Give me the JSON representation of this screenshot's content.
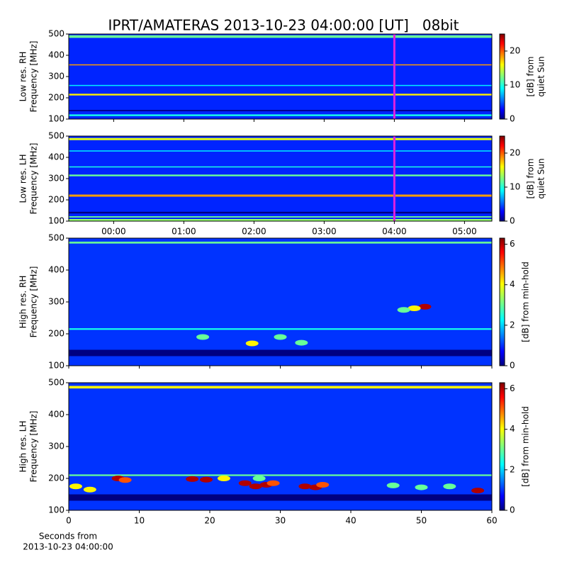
{
  "chart_data": [
    {
      "type": "heatmap",
      "title": "IPRT/AMATERAS 2013-10-23 04:00:00 [UT]   08bit",
      "ylabel": [
        "Low res. RH",
        "Frequency [MHz]"
      ],
      "xlim": [
        -0.64,
        5.39
      ],
      "xticks": [
        {
          "value": 0,
          "label": "00:00"
        },
        {
          "value": 1,
          "label": "01:00"
        },
        {
          "value": 2,
          "label": "02:00"
        },
        {
          "value": 3,
          "label": "03:00"
        },
        {
          "value": 4,
          "label": "04:00"
        },
        {
          "value": 5,
          "label": "05:00"
        }
      ],
      "xticklabels": false,
      "ylim": [
        100,
        500
      ],
      "yticks": [
        100,
        200,
        300,
        400,
        500
      ],
      "zlim": [
        0,
        25
      ],
      "zticks": [
        0,
        10,
        20
      ],
      "zlabel": [
        "[dB] from",
        "quiet Sun"
      ],
      "background": 4,
      "cursor": 4,
      "cursor_color": "#e020e0",
      "bands": [
        {
          "y": 488,
          "height": 12,
          "z": 12
        },
        {
          "y": 355,
          "height": 5,
          "z": 18
        },
        {
          "y": 258,
          "height": 5,
          "z": 9
        },
        {
          "y": 215,
          "height": 8,
          "z": 16
        },
        {
          "y": 140,
          "height": 6,
          "z": 0
        },
        {
          "y": 118,
          "height": 8,
          "z": 10
        }
      ],
      "spots": []
    },
    {
      "type": "heatmap",
      "ylabel": [
        "Low res. LH",
        "Frequency [MHz]"
      ],
      "xlim": [
        -0.64,
        5.39
      ],
      "xticks": [
        {
          "value": 0,
          "label": "00:00"
        },
        {
          "value": 1,
          "label": "01:00"
        },
        {
          "value": 2,
          "label": "02:00"
        },
        {
          "value": 3,
          "label": "03:00"
        },
        {
          "value": 4,
          "label": "04:00"
        },
        {
          "value": 5,
          "label": "05:00"
        }
      ],
      "xticklabels": true,
      "ylim": [
        100,
        500
      ],
      "yticks": [
        100,
        200,
        300,
        400,
        500
      ],
      "zlim": [
        0,
        25
      ],
      "zticks": [
        0,
        10,
        20
      ],
      "zlabel": [
        "[dB] from",
        "quiet Sun"
      ],
      "background": 4,
      "cursor": 4,
      "cursor_color": "#e020e0",
      "bands": [
        {
          "y": 486,
          "height": 10,
          "z": 15
        },
        {
          "y": 430,
          "height": 5,
          "z": 9
        },
        {
          "y": 355,
          "height": 5,
          "z": 10
        },
        {
          "y": 315,
          "height": 8,
          "z": 12
        },
        {
          "y": 220,
          "height": 10,
          "z": 18
        },
        {
          "y": 140,
          "height": 8,
          "z": 0
        },
        {
          "y": 120,
          "height": 6,
          "z": 12
        },
        {
          "y": 105,
          "height": 10,
          "z": 13
        }
      ],
      "spots": []
    },
    {
      "type": "heatmap",
      "ylabel": [
        "High res. RH",
        "Frequency [MHz]"
      ],
      "xlim": [
        0,
        60
      ],
      "xticks": [
        0,
        10,
        20,
        30,
        40,
        50,
        60
      ],
      "xticklabels": false,
      "ylim": [
        100,
        500
      ],
      "yticks": [
        100,
        200,
        300,
        400,
        500
      ],
      "zlim": [
        0,
        6.3
      ],
      "zticks": [
        0,
        2,
        4,
        6
      ],
      "zlabel": [
        "[dB] from min-hold"
      ],
      "background": 1.1,
      "bands": [
        {
          "y": 486,
          "height": 6,
          "z": 3
        },
        {
          "y": 215,
          "height": 5,
          "z": 2.5
        },
        {
          "y": 140,
          "height": 20,
          "z": 0
        }
      ],
      "spots": [
        {
          "x": 50.5,
          "y": 285,
          "z": 6
        },
        {
          "x": 49,
          "y": 280,
          "z": 4
        },
        {
          "x": 47.5,
          "y": 275,
          "z": 3
        },
        {
          "x": 19,
          "y": 190,
          "z": 3
        },
        {
          "x": 26,
          "y": 170,
          "z": 4
        },
        {
          "x": 30,
          "y": 190,
          "z": 3
        },
        {
          "x": 33,
          "y": 172,
          "z": 3
        }
      ]
    },
    {
      "type": "heatmap",
      "ylabel": [
        "High res. LH",
        "Frequency [MHz]"
      ],
      "xlim": [
        0,
        60
      ],
      "xticks": [
        0,
        10,
        20,
        30,
        40,
        50,
        60
      ],
      "xticklabels": true,
      "xlabel": [
        "Seconds from",
        "2013-10-23 04:00:00"
      ],
      "ylim": [
        100,
        500
      ],
      "yticks": [
        100,
        200,
        300,
        400,
        500
      ],
      "zlim": [
        0,
        6.3
      ],
      "zticks": [
        0,
        2,
        4,
        6
      ],
      "zlabel": [
        "[dB] from min-hold"
      ],
      "background": 1.1,
      "bands": [
        {
          "y": 486,
          "height": 8,
          "z": 4
        },
        {
          "y": 210,
          "height": 5,
          "z": 3
        },
        {
          "y": 140,
          "height": 20,
          "z": 0
        }
      ],
      "spots": [
        {
          "x": 1,
          "y": 175,
          "z": 4
        },
        {
          "x": 3,
          "y": 165,
          "z": 4
        },
        {
          "x": 7,
          "y": 200,
          "z": 6
        },
        {
          "x": 8,
          "y": 195,
          "z": 5
        },
        {
          "x": 17.5,
          "y": 198,
          "z": 6
        },
        {
          "x": 19.5,
          "y": 196,
          "z": 6
        },
        {
          "x": 22,
          "y": 200,
          "z": 4
        },
        {
          "x": 25,
          "y": 185,
          "z": 6
        },
        {
          "x": 26.5,
          "y": 175,
          "z": 6
        },
        {
          "x": 27,
          "y": 200,
          "z": 3
        },
        {
          "x": 28,
          "y": 180,
          "z": 6
        },
        {
          "x": 29,
          "y": 185,
          "z": 5
        },
        {
          "x": 33.5,
          "y": 175,
          "z": 6
        },
        {
          "x": 35,
          "y": 172,
          "z": 6
        },
        {
          "x": 36,
          "y": 180,
          "z": 5
        },
        {
          "x": 46,
          "y": 178,
          "z": 3
        },
        {
          "x": 50,
          "y": 172,
          "z": 3
        },
        {
          "x": 54,
          "y": 175,
          "z": 3
        },
        {
          "x": 58,
          "y": 162,
          "z": 6
        }
      ]
    }
  ]
}
